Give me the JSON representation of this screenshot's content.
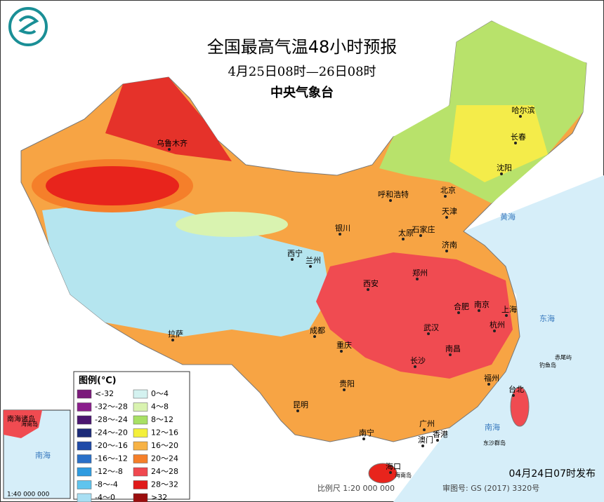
{
  "header": {
    "title": "全国最高气温48小时预报",
    "subtitle": "4月25日08时—26日08时",
    "issuer": "中央气象台"
  },
  "legend": {
    "title": "图例(℃)",
    "items": [
      {
        "label": "<-32",
        "color": "#7b1a7b"
      },
      {
        "label": "-32～-28",
        "color": "#8a1e8c"
      },
      {
        "label": "-28～-24",
        "color": "#4b1670"
      },
      {
        "label": "-24～-20",
        "color": "#1b2a78"
      },
      {
        "label": "-20～-16",
        "color": "#1f4aa8"
      },
      {
        "label": "-16～-12",
        "color": "#2a70c8"
      },
      {
        "label": "-12～-8",
        "color": "#2e9be0"
      },
      {
        "label": "-8～-4",
        "color": "#5fc4ee"
      },
      {
        "label": "-4～0",
        "color": "#a8dff3"
      },
      {
        "label": "0～4",
        "color": "#d4f2f0"
      },
      {
        "label": "4～8",
        "color": "#d9f3b0"
      },
      {
        "label": "8～12",
        "color": "#a8e065"
      },
      {
        "label": "12～16",
        "color": "#f4f03a"
      },
      {
        "label": "16～20",
        "color": "#f7b244"
      },
      {
        "label": "20～24",
        "color": "#f57f2a"
      },
      {
        "label": "24～28",
        "color": "#f0484f"
      },
      {
        "label": "28～32",
        "color": "#e01a1a"
      },
      {
        "label": ">32",
        "color": "#9b0e0e"
      }
    ]
  },
  "cities": [
    "乌鲁木齐",
    "哈尔滨",
    "长春",
    "沈阳",
    "呼和浩特",
    "北京",
    "天津",
    "石家庄",
    "太原",
    "银川",
    "济南",
    "西宁",
    "兰州",
    "郑州",
    "西安",
    "合肥",
    "南京",
    "上海",
    "武汉",
    "杭州",
    "成都",
    "重庆",
    "南昌",
    "长沙",
    "拉萨",
    "贵阳",
    "福州",
    "台北",
    "昆明",
    "南宁",
    "广州",
    "澳门",
    "香港",
    "海口"
  ],
  "seas": [
    "黄海",
    "东海",
    "南海"
  ],
  "islands": [
    "钓鱼岛",
    "赤尾屿",
    "东沙群岛",
    "海南岛"
  ],
  "inset": {
    "title": "南海诸岛",
    "scale": "1:40 000 000",
    "island": "海南岛",
    "sea": "南海"
  },
  "footer": {
    "scale": "比例尺 1:20 000 000",
    "approval": "审图号: GS (2017) 3320号",
    "issued": "04月24日07时发布"
  }
}
